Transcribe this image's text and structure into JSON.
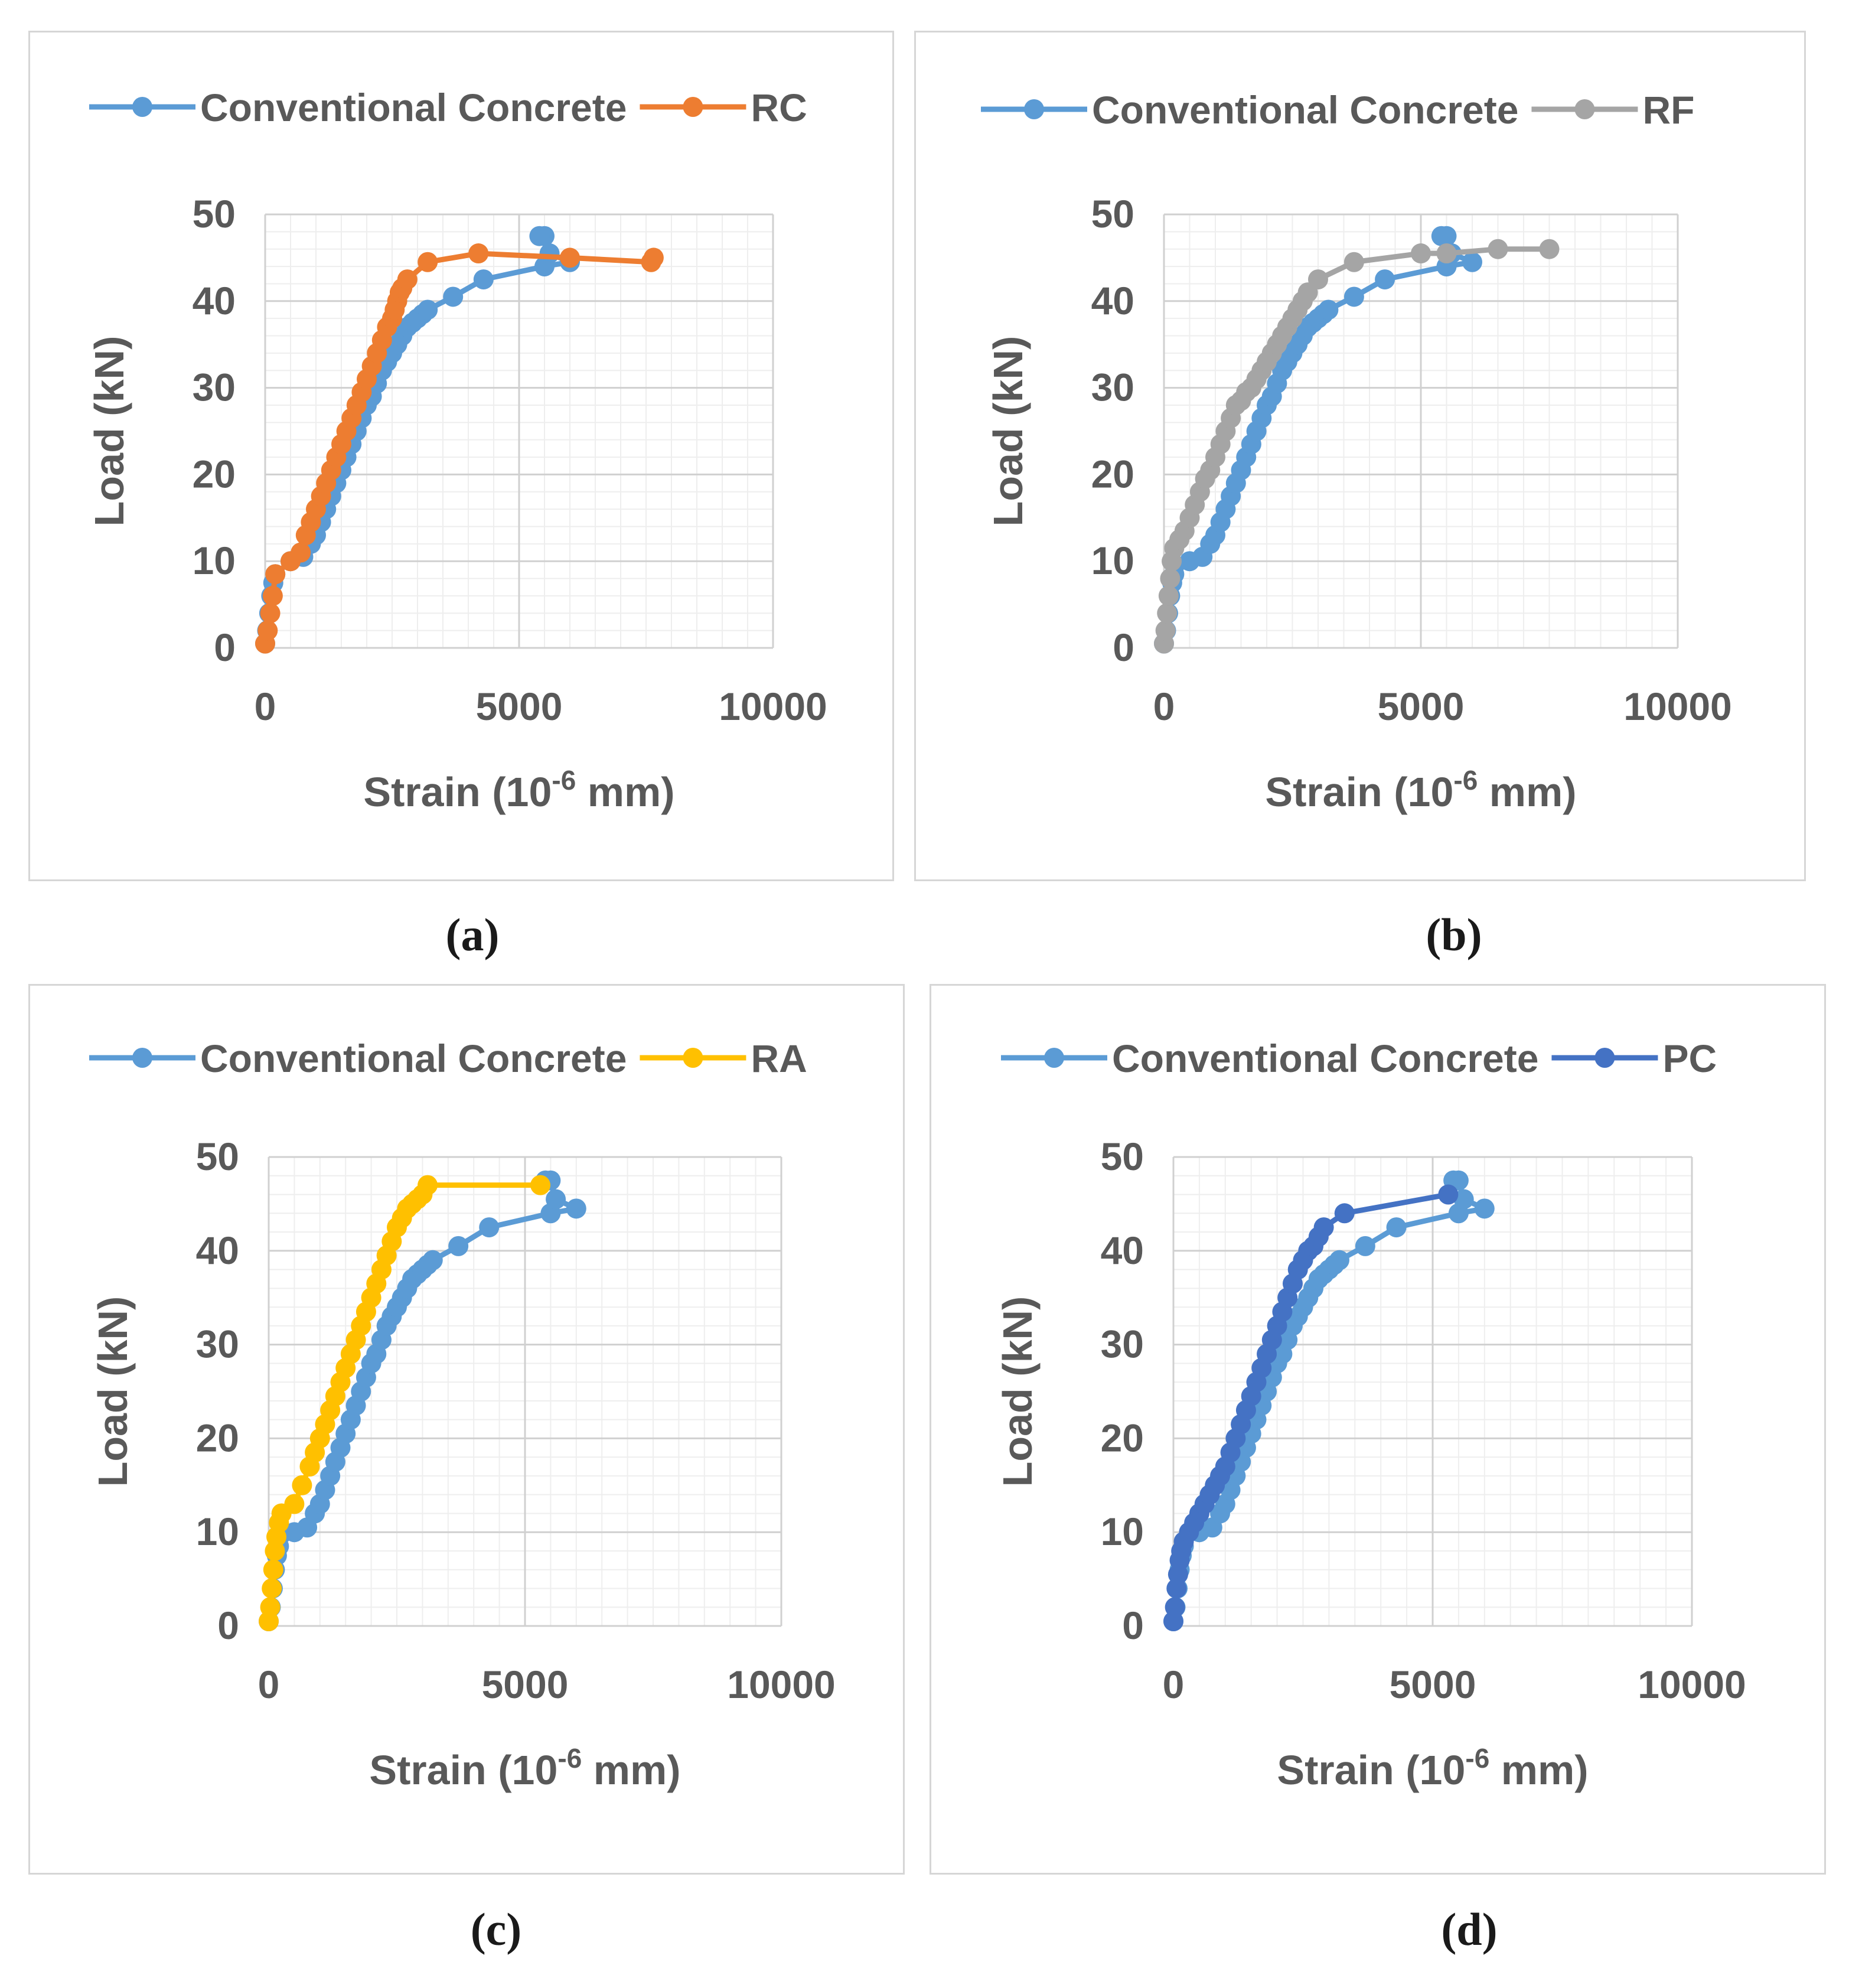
{
  "chart_data": [
    {
      "type": "line",
      "panel_label": "(a)",
      "xlabel_prefix": "Strain (10",
      "xlabel_exponent": "-6",
      "xlabel_suffix": " mm)",
      "ylabel": "Load (kN)",
      "xlim": [
        0,
        10000
      ],
      "ylim": [
        0,
        50
      ],
      "xticks": [
        "0",
        "5000",
        "10000"
      ],
      "yticks": [
        "0",
        "10",
        "20",
        "30",
        "40",
        "50"
      ],
      "legend_position": "top",
      "series": [
        {
          "name": "Conventional Concrete",
          "color": "#5b9bd5",
          "x": [
            0,
            40,
            80,
            120,
            160,
            200,
            500,
            750,
            900,
            1000,
            1100,
            1200,
            1300,
            1400,
            1500,
            1600,
            1700,
            1800,
            1900,
            2000,
            2100,
            2200,
            2300,
            2400,
            2500,
            2600,
            2700,
            2800,
            2900,
            3000,
            3100,
            3200,
            3700,
            4300,
            5500,
            6000,
            5600,
            5500,
            5400
          ],
          "y": [
            0.5,
            2,
            4,
            6,
            7.5,
            8.5,
            10,
            10.5,
            12,
            13,
            14.5,
            16,
            17.5,
            19,
            20.5,
            22,
            23.5,
            25,
            26.5,
            28,
            29,
            30.5,
            32,
            33,
            34,
            35,
            36,
            37,
            37.5,
            38,
            38.5,
            39,
            40.5,
            42.5,
            44,
            44.5,
            45.5,
            47.5,
            47.5
          ]
        },
        {
          "name": "RC",
          "color": "#ed7d31",
          "x": [
            0,
            50,
            100,
            150,
            200,
            500,
            700,
            800,
            900,
            1000,
            1100,
            1200,
            1300,
            1400,
            1500,
            1600,
            1700,
            1800,
            1900,
            2000,
            2100,
            2200,
            2300,
            2400,
            2500,
            2550,
            2600,
            2650,
            2700,
            2800,
            3200,
            4200,
            6000,
            7600,
            7650
          ],
          "y": [
            0.5,
            2,
            4,
            6,
            8.5,
            10,
            11,
            13,
            14.5,
            16,
            17.5,
            19,
            20.5,
            22,
            23.5,
            25,
            26.5,
            28,
            29.5,
            31,
            32.5,
            34,
            35.5,
            37,
            38,
            39,
            40,
            41,
            41.5,
            42.5,
            44.5,
            45.5,
            45,
            44.5,
            45
          ]
        }
      ]
    },
    {
      "type": "line",
      "panel_label": "(b)",
      "xlabel_prefix": "Strain (10",
      "xlabel_exponent": "-6",
      "xlabel_suffix": " mm)",
      "ylabel": "Load (kN)",
      "xlim": [
        0,
        10000
      ],
      "ylim": [
        0,
        50
      ],
      "xticks": [
        "0",
        "5000",
        "10000"
      ],
      "yticks": [
        "0",
        "10",
        "20",
        "30",
        "40",
        "50"
      ],
      "legend_position": "top",
      "series": [
        {
          "name": "Conventional Concrete",
          "color": "#5b9bd5",
          "x": [
            0,
            40,
            80,
            120,
            160,
            200,
            500,
            750,
            900,
            1000,
            1100,
            1200,
            1300,
            1400,
            1500,
            1600,
            1700,
            1800,
            1900,
            2000,
            2100,
            2200,
            2300,
            2400,
            2500,
            2600,
            2700,
            2800,
            2900,
            3000,
            3100,
            3200,
            3700,
            4300,
            5500,
            6000,
            5600,
            5500,
            5400
          ],
          "y": [
            0.5,
            2,
            4,
            6,
            7.5,
            8.5,
            10,
            10.5,
            12,
            13,
            14.5,
            16,
            17.5,
            19,
            20.5,
            22,
            23.5,
            25,
            26.5,
            28,
            29,
            30.5,
            32,
            33,
            34,
            35,
            36,
            37,
            37.5,
            38,
            38.5,
            39,
            40.5,
            42.5,
            44,
            44.5,
            45.5,
            47.5,
            47.5
          ]
        },
        {
          "name": "RF",
          "color": "#a5a5a5",
          "x": [
            0,
            30,
            60,
            90,
            120,
            150,
            200,
            300,
            400,
            500,
            600,
            700,
            800,
            900,
            1000,
            1100,
            1200,
            1300,
            1400,
            1500,
            1600,
            1700,
            1800,
            1900,
            2000,
            2100,
            2200,
            2300,
            2400,
            2500,
            2600,
            2700,
            2800,
            3000,
            3700,
            5000,
            5500,
            6500,
            7500
          ],
          "y": [
            0.5,
            2,
            4,
            6,
            8,
            10,
            11.5,
            12.5,
            13.5,
            15,
            16.5,
            18,
            19.5,
            20.5,
            22,
            23.5,
            25,
            26.5,
            28,
            28.5,
            29.5,
            30,
            31,
            32,
            33,
            34,
            35,
            36,
            37,
            38,
            39,
            40,
            41,
            42.5,
            44.5,
            45.5,
            45.5,
            46,
            46
          ]
        }
      ]
    },
    {
      "type": "line",
      "panel_label": "(c)",
      "xlabel_prefix": "Strain (10",
      "xlabel_exponent": "-6",
      "xlabel_suffix": " mm)",
      "ylabel": "Load (kN)",
      "xlim": [
        0,
        10000
      ],
      "ylim": [
        0,
        50
      ],
      "xticks": [
        "0",
        "5000",
        "10000"
      ],
      "yticks": [
        "0",
        "10",
        "20",
        "30",
        "40",
        "50"
      ],
      "legend_position": "top",
      "series": [
        {
          "name": "Conventional Concrete",
          "color": "#5b9bd5",
          "x": [
            0,
            40,
            80,
            120,
            160,
            200,
            500,
            750,
            900,
            1000,
            1100,
            1200,
            1300,
            1400,
            1500,
            1600,
            1700,
            1800,
            1900,
            2000,
            2100,
            2200,
            2300,
            2400,
            2500,
            2600,
            2700,
            2800,
            2900,
            3000,
            3100,
            3200,
            3700,
            4300,
            5500,
            6000,
            5600,
            5500,
            5400
          ],
          "y": [
            0.5,
            2,
            4,
            6,
            7.5,
            8.5,
            10,
            10.5,
            12,
            13,
            14.5,
            16,
            17.5,
            19,
            20.5,
            22,
            23.5,
            25,
            26.5,
            28,
            29,
            30.5,
            32,
            33,
            34,
            35,
            36,
            37,
            37.5,
            38,
            38.5,
            39,
            40.5,
            42.5,
            44,
            44.5,
            45.5,
            47.5,
            47.5
          ]
        },
        {
          "name": "RA",
          "color": "#ffc000",
          "x": [
            0,
            30,
            60,
            90,
            120,
            150,
            200,
            250,
            500,
            650,
            800,
            900,
            1000,
            1100,
            1200,
            1300,
            1400,
            1500,
            1600,
            1700,
            1800,
            1900,
            2000,
            2100,
            2200,
            2300,
            2400,
            2500,
            2600,
            2700,
            2800,
            2900,
            3000,
            3100,
            5300
          ],
          "y": [
            0.5,
            2,
            4,
            6,
            8,
            9.5,
            11,
            12,
            13,
            15,
            17,
            18.5,
            20,
            21.5,
            23,
            24.5,
            26,
            27.5,
            29,
            30.5,
            32,
            33.5,
            35,
            36.5,
            38,
            39.5,
            41,
            42.5,
            43.5,
            44.5,
            45,
            45.5,
            46,
            47,
            47
          ]
        }
      ]
    },
    {
      "type": "line",
      "panel_label": "(d)",
      "xlabel_prefix": "Strain (10",
      "xlabel_exponent": "-6",
      "xlabel_suffix": " mm)",
      "ylabel": "Load (kN)",
      "xlim": [
        0,
        10000
      ],
      "ylim": [
        0,
        50
      ],
      "xticks": [
        "0",
        "5000",
        "10000"
      ],
      "yticks": [
        "0",
        "10",
        "20",
        "30",
        "40",
        "50"
      ],
      "legend_position": "top",
      "series": [
        {
          "name": "Conventional Concrete",
          "color": "#5b9bd5",
          "x": [
            0,
            40,
            80,
            120,
            160,
            200,
            500,
            750,
            900,
            1000,
            1100,
            1200,
            1300,
            1400,
            1500,
            1600,
            1700,
            1800,
            1900,
            2000,
            2100,
            2200,
            2300,
            2400,
            2500,
            2600,
            2700,
            2800,
            2900,
            3000,
            3100,
            3200,
            3700,
            4300,
            5500,
            6000,
            5600,
            5500,
            5400
          ],
          "y": [
            0.5,
            2,
            4,
            6,
            7.5,
            8.5,
            10,
            10.5,
            12,
            13,
            14.5,
            16,
            17.5,
            19,
            20.5,
            22,
            23.5,
            25,
            26.5,
            28,
            29,
            30.5,
            32,
            33,
            34,
            35,
            36,
            37,
            37.5,
            38,
            38.5,
            39,
            40.5,
            42.5,
            44,
            44.5,
            45.5,
            47.5,
            47.5
          ]
        },
        {
          "name": "PC",
          "color": "#4472c4",
          "x": [
            0,
            30,
            60,
            90,
            120,
            150,
            200,
            300,
            400,
            500,
            600,
            700,
            800,
            900,
            1000,
            1100,
            1200,
            1300,
            1400,
            1500,
            1600,
            1700,
            1800,
            1900,
            2000,
            2100,
            2200,
            2300,
            2400,
            2500,
            2600,
            2700,
            2800,
            2900,
            3300,
            5300
          ],
          "y": [
            0.5,
            2,
            4,
            5.5,
            7,
            8,
            9,
            10,
            11,
            12,
            13,
            14,
            15,
            16,
            17,
            18.5,
            20,
            21.5,
            23,
            24.5,
            26,
            27.5,
            29,
            30.5,
            32,
            33.5,
            35,
            36.5,
            38,
            39,
            40,
            40.5,
            41.5,
            42.5,
            44,
            46
          ]
        }
      ]
    }
  ]
}
